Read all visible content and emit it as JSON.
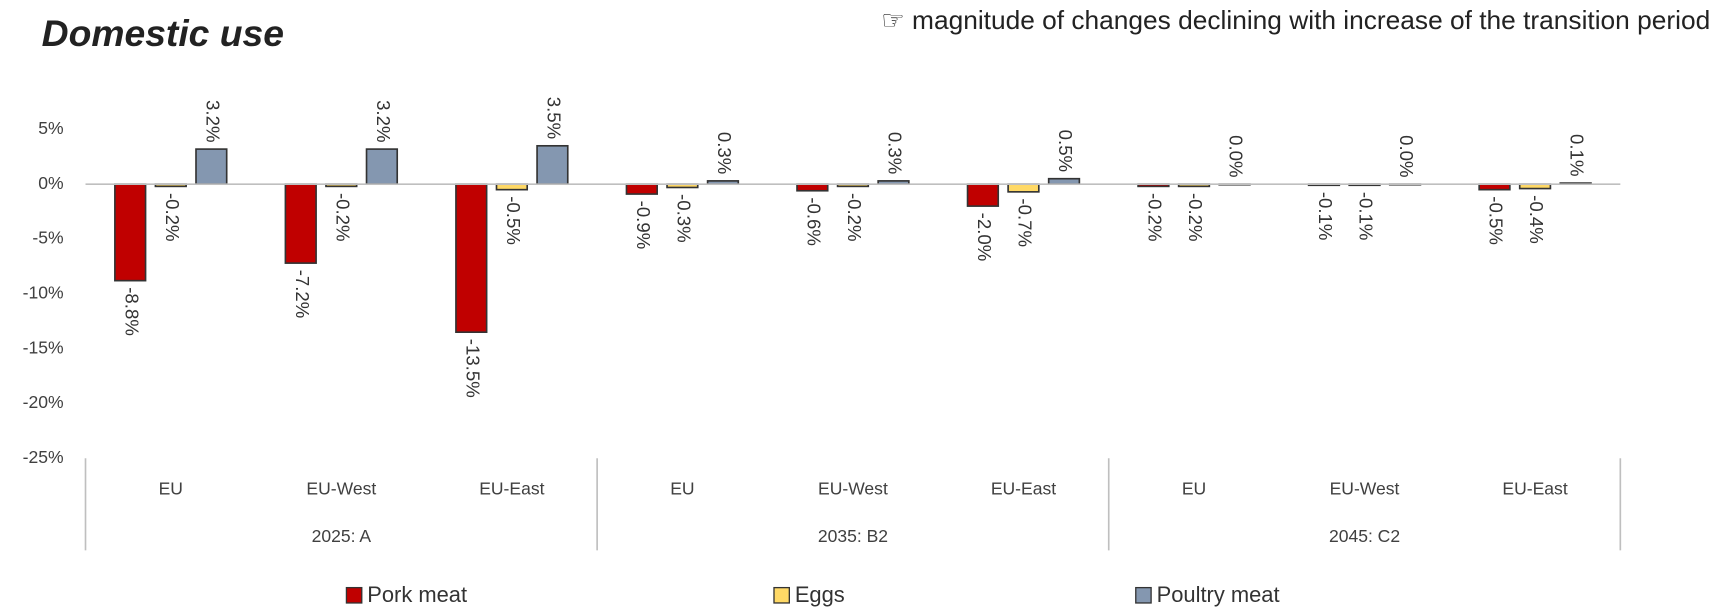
{
  "chart_data": {
    "type": "bar",
    "title": "Domestic use",
    "annotation": "☞ magnitude of changes declining with increase of the transition period",
    "categories": [
      "EU",
      "EU-West",
      "EU-East",
      "EU",
      "EU-West",
      "EU-East",
      "EU",
      "EU-West",
      "EU-East"
    ],
    "groups": [
      "2025: A",
      "2035: B2",
      "2045: C2"
    ],
    "series": [
      {
        "name": "Pork meat",
        "color": "#c00000",
        "values": [
          -8.8,
          -7.2,
          -13.5,
          -0.9,
          -0.6,
          -2.0,
          -0.2,
          -0.1,
          -0.5
        ],
        "value_labels": [
          "-8.8%",
          "-7.2%",
          "-13.5%",
          "-0.9%",
          "-0.6%",
          "-2.0%",
          "-0.2%",
          "-0.1%",
          "-0.5%"
        ]
      },
      {
        "name": "Eggs",
        "color": "#ffd966",
        "values": [
          -0.2,
          -0.2,
          -0.5,
          -0.3,
          -0.2,
          -0.7,
          -0.2,
          -0.1,
          -0.4
        ],
        "value_labels": [
          "-0.2%",
          "-0.2%",
          "-0.5%",
          "-0.3%",
          "-0.2%",
          "-0.7%",
          "-0.2%",
          "-0.1%",
          "-0.4%"
        ]
      },
      {
        "name": "Poultry meat",
        "color": "#8497b0",
        "values": [
          3.2,
          3.2,
          3.5,
          0.3,
          0.3,
          0.5,
          0.0,
          0.0,
          0.1
        ],
        "value_labels": [
          "3.2%",
          "3.2%",
          "3.5%",
          "0.3%",
          "0.3%",
          "0.5%",
          "0.0%",
          "0.0%",
          "0.1%"
        ]
      }
    ],
    "ylim": [
      -25,
      5
    ],
    "yticks": [
      {
        "value": -25,
        "label": "-25%"
      },
      {
        "value": -20,
        "label": "-20%"
      },
      {
        "value": -15,
        "label": "-15%"
      },
      {
        "value": -10,
        "label": "-10%"
      },
      {
        "value": -5,
        "label": "-5%"
      },
      {
        "value": 0,
        "label": "0%"
      },
      {
        "value": 5,
        "label": "5%"
      }
    ]
  }
}
